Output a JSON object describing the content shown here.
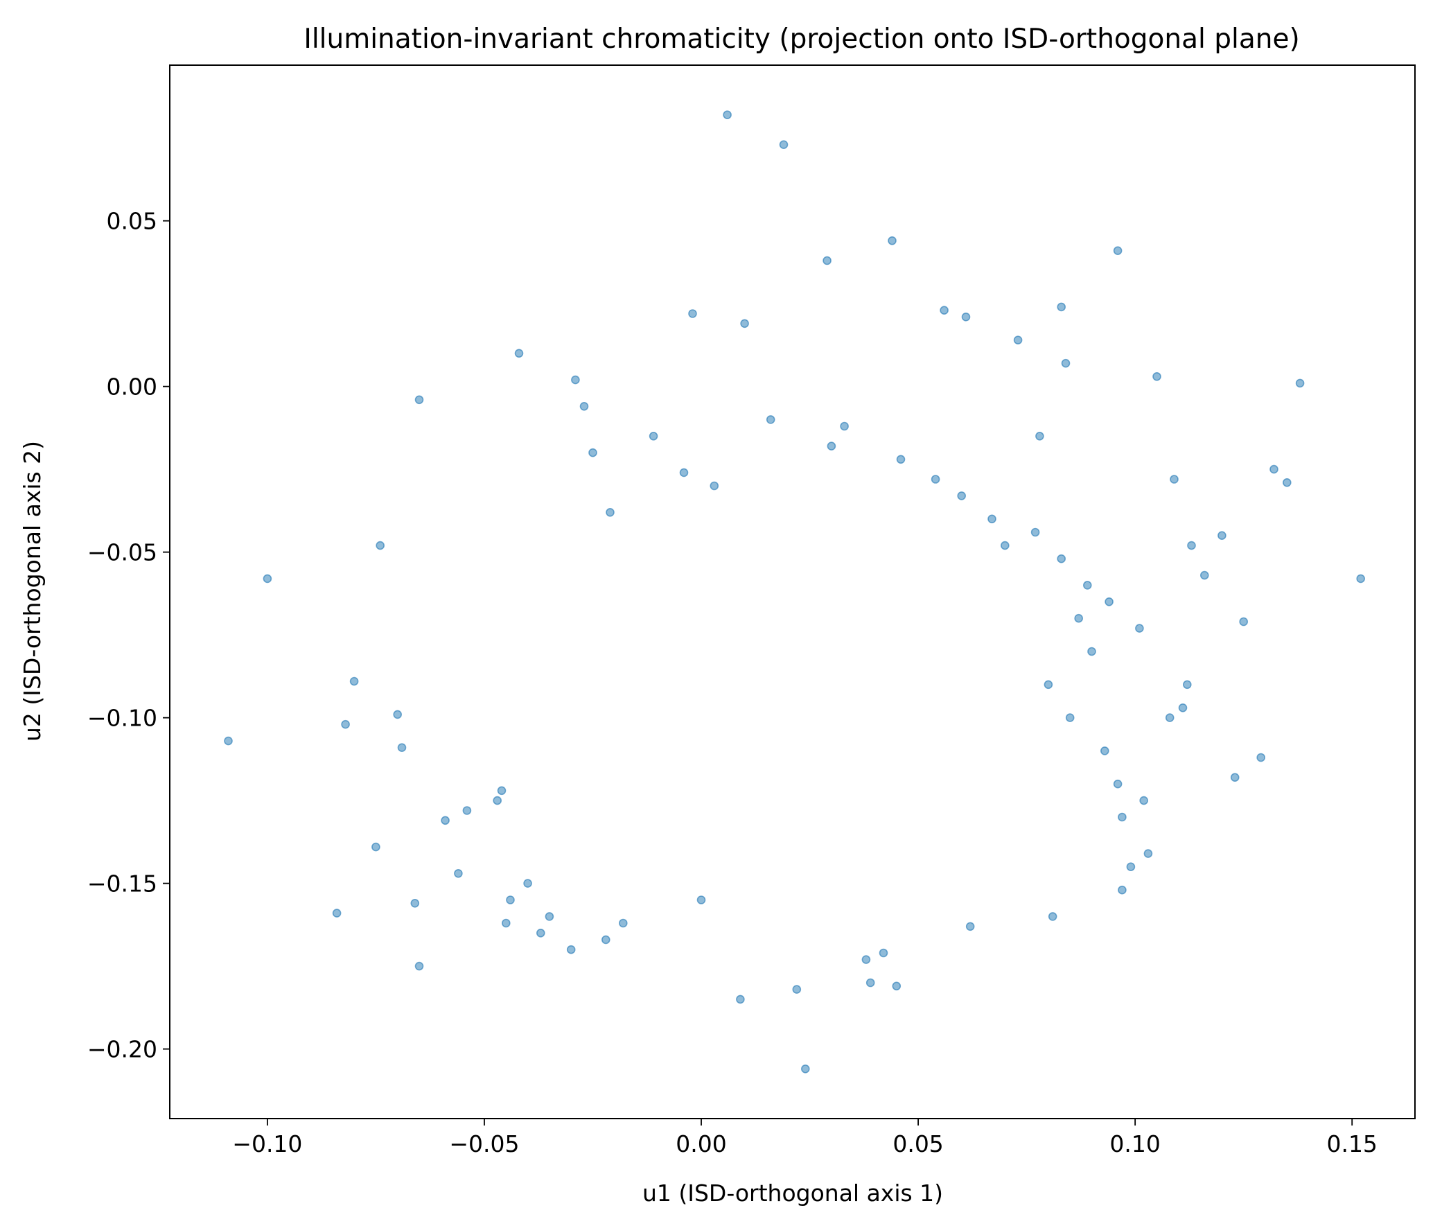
{
  "chart_data": {
    "type": "scatter",
    "title": "Illumination-invariant chromaticity (projection onto ISD-orthogonal plane)",
    "xlabel": "u1 (ISD-orthogonal axis 1)",
    "ylabel": "u2 (ISD-orthogonal axis 2)",
    "xlim": [
      -0.1225,
      0.1645
    ],
    "ylim": [
      -0.221,
      0.097
    ],
    "grid": false,
    "legend": "none",
    "marker_color": "#1f77b4",
    "xticks": [
      -0.1,
      -0.05,
      0.0,
      0.05,
      0.1,
      0.15
    ],
    "xtick_labels": [
      "−0.10",
      "−0.05",
      "0.00",
      "0.05",
      "0.10",
      "0.15"
    ],
    "yticks": [
      0.05,
      0.0,
      -0.05,
      -0.1,
      -0.15,
      -0.2
    ],
    "ytick_labels": [
      "0.05",
      "0.00",
      "−0.05",
      "−0.10",
      "−0.15",
      "−0.20"
    ],
    "series": [
      {
        "x": [
          0.006,
          0.019,
          -0.1,
          0.152,
          -0.109,
          0.024,
          0.029,
          0.044,
          0.096,
          0.138,
          0.105,
          -0.065,
          -0.042,
          0.083,
          0.056,
          0.061,
          0.01,
          -0.002,
          -0.084,
          -0.075,
          -0.08,
          -0.082,
          -0.074,
          -0.065,
          -0.066,
          0.125,
          0.132,
          0.135,
          0.129,
          0.039,
          0.042,
          0.045,
          0.009,
          0.022,
          0.038,
          0.073,
          0.084,
          0.081,
          0.062,
          0.097,
          0.103,
          0.097,
          0.099,
          0.116,
          0.123,
          0.12,
          0.109,
          0.113,
          0.111,
          -0.07,
          -0.069,
          -0.059,
          -0.056,
          -0.054,
          -0.046,
          -0.047,
          -0.045,
          -0.044,
          -0.037,
          -0.04,
          -0.035,
          -0.03,
          -0.022,
          -0.018,
          0.0,
          -0.029,
          -0.027,
          -0.025,
          -0.021,
          -0.011,
          -0.004,
          0.003,
          0.016,
          0.03,
          0.033,
          0.046,
          0.054,
          0.06,
          0.067,
          0.07,
          0.077,
          0.083,
          0.089,
          0.094,
          0.101,
          0.09,
          0.08,
          0.085,
          0.093,
          0.096,
          0.102,
          0.108,
          0.112,
          0.087,
          0.078
        ],
        "y": [
          0.082,
          0.073,
          -0.058,
          -0.058,
          -0.107,
          -0.206,
          0.038,
          0.044,
          0.041,
          0.001,
          0.003,
          -0.004,
          0.01,
          0.024,
          0.023,
          0.021,
          0.019,
          0.022,
          -0.159,
          -0.139,
          -0.089,
          -0.102,
          -0.048,
          -0.175,
          -0.156,
          -0.071,
          -0.025,
          -0.029,
          -0.112,
          -0.18,
          -0.171,
          -0.181,
          -0.185,
          -0.182,
          -0.173,
          0.014,
          0.007,
          -0.16,
          -0.163,
          -0.152,
          -0.141,
          -0.13,
          -0.145,
          -0.057,
          -0.118,
          -0.045,
          -0.028,
          -0.048,
          -0.097,
          -0.099,
          -0.109,
          -0.131,
          -0.147,
          -0.128,
          -0.122,
          -0.125,
          -0.162,
          -0.155,
          -0.165,
          -0.15,
          -0.16,
          -0.17,
          -0.167,
          -0.162,
          -0.155,
          0.002,
          -0.006,
          -0.02,
          -0.038,
          -0.015,
          -0.026,
          -0.03,
          -0.01,
          -0.018,
          -0.012,
          -0.022,
          -0.028,
          -0.033,
          -0.04,
          -0.048,
          -0.044,
          -0.052,
          -0.06,
          -0.065,
          -0.073,
          -0.08,
          -0.09,
          -0.1,
          -0.11,
          -0.12,
          -0.125,
          -0.1,
          -0.09,
          -0.07,
          -0.015
        ]
      }
    ]
  }
}
